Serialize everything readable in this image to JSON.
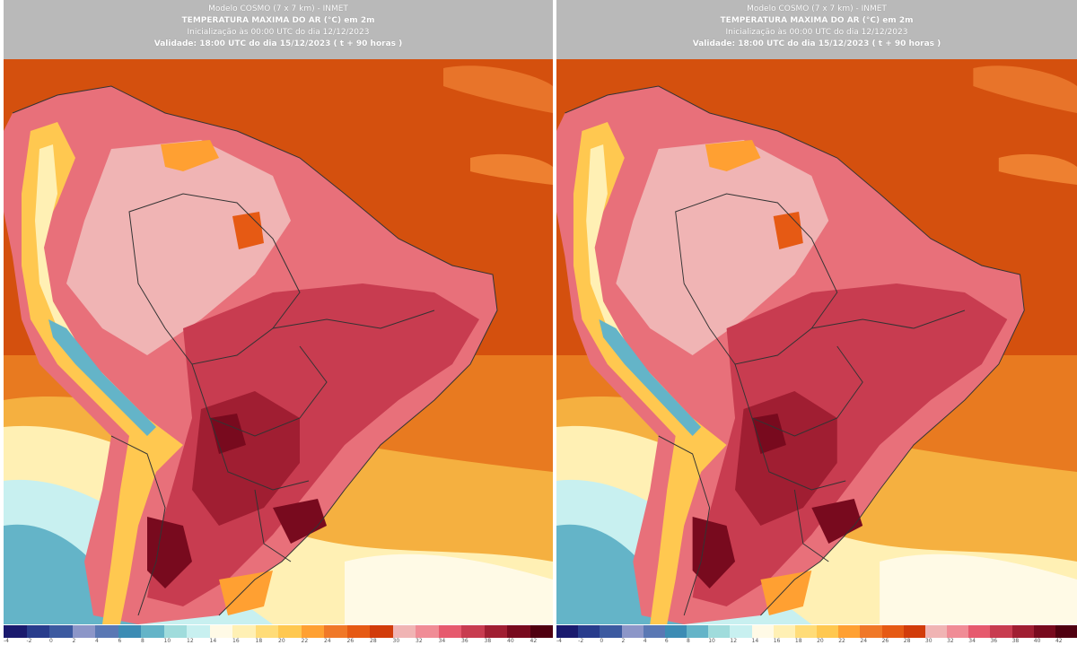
{
  "panels": [
    {
      "header": {
        "model": "Modelo COSMO (7 x 7 km) - INMET",
        "title": "TEMPERATURA MAXIMA DO AR (°C) em 2m",
        "init": "Inicialização às 00:00 UTC do dia 12/12/2023",
        "valid": "Validade: 18:00 UTC do dia 15/12/2023 ( t + 90 horas )"
      }
    },
    {
      "header": {
        "model": "Modelo COSMO (7 x 7 km) - INMET",
        "title": "TEMPERATURA MAXIMA DO AR (°C) em 2m",
        "init": "Inicialização às 00:00 UTC do dia 12/12/2023",
        "valid": "Validade: 18:00 UTC do dia 15/12/2023 ( t + 90 horas )"
      }
    }
  ],
  "colorbar": {
    "colors": [
      "#1a1a6e",
      "#283c8c",
      "#3c5aa0",
      "#8c96c8",
      "#5a78b4",
      "#3c8cb4",
      "#64b4c8",
      "#a0dcdc",
      "#c8f0f0",
      "#fffae6",
      "#fff0b4",
      "#ffdc78",
      "#ffc850",
      "#ffa032",
      "#f07828",
      "#e65a14",
      "#d23c0a",
      "#f0b4b4",
      "#f08c96",
      "#e65a6e",
      "#c83c50",
      "#a01e32",
      "#780a1e",
      "#500010"
    ],
    "ticks": [
      "-4",
      "-2",
      "0",
      "2",
      "4",
      "6",
      "8",
      "10",
      "12",
      "14",
      "16",
      "18",
      "20",
      "22",
      "24",
      "26",
      "28",
      "30",
      "32",
      "34",
      "36",
      "38",
      "40",
      "42"
    ]
  }
}
